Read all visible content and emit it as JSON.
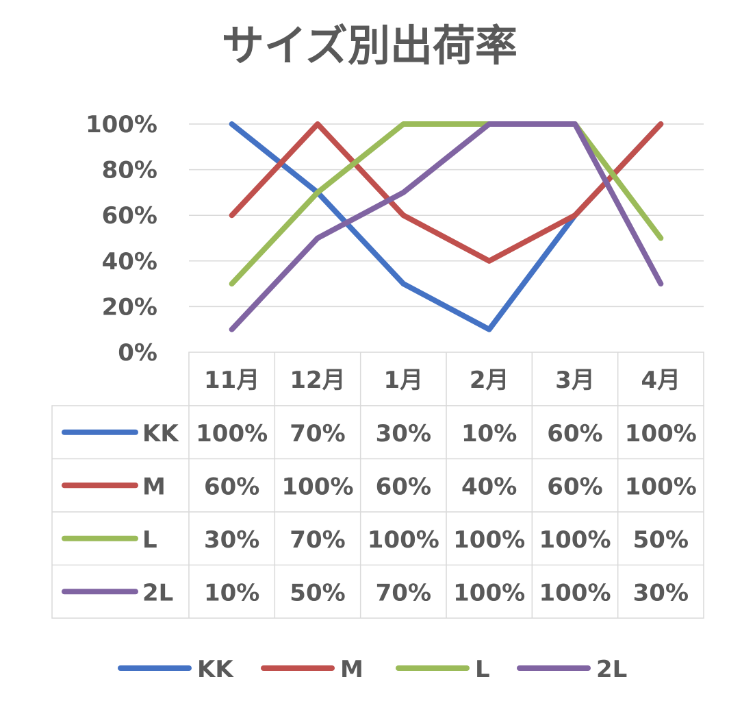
{
  "chart_data": {
    "type": "line",
    "title": "サイズ別出荷率",
    "categories": [
      "11月",
      "12月",
      "1月",
      "2月",
      "3月",
      "4月"
    ],
    "y_ticks": [
      "0%",
      "20%",
      "40%",
      "60%",
      "80%",
      "100%"
    ],
    "ylim": [
      0,
      100
    ],
    "grid": true,
    "legend_position": "bottom",
    "data_table": true,
    "series": [
      {
        "name": "KK",
        "color": "#4472c4",
        "values": [
          100,
          70,
          30,
          10,
          60,
          100
        ],
        "labels": [
          "100%",
          "70%",
          "30%",
          "10%",
          "60%",
          "100%"
        ]
      },
      {
        "name": "M",
        "color": "#c0504d",
        "values": [
          60,
          100,
          60,
          40,
          60,
          100
        ],
        "labels": [
          "60%",
          "100%",
          "60%",
          "40%",
          "60%",
          "100%"
        ]
      },
      {
        "name": "L",
        "color": "#9bbb59",
        "values": [
          30,
          70,
          100,
          100,
          100,
          50
        ],
        "labels": [
          "30%",
          "70%",
          "100%",
          "100%",
          "100%",
          "50%"
        ]
      },
      {
        "name": "2L",
        "color": "#8064a2",
        "values": [
          10,
          50,
          70,
          100,
          100,
          30
        ],
        "labels": [
          "10%",
          "50%",
          "70%",
          "100%",
          "100%",
          "30%"
        ]
      }
    ]
  }
}
